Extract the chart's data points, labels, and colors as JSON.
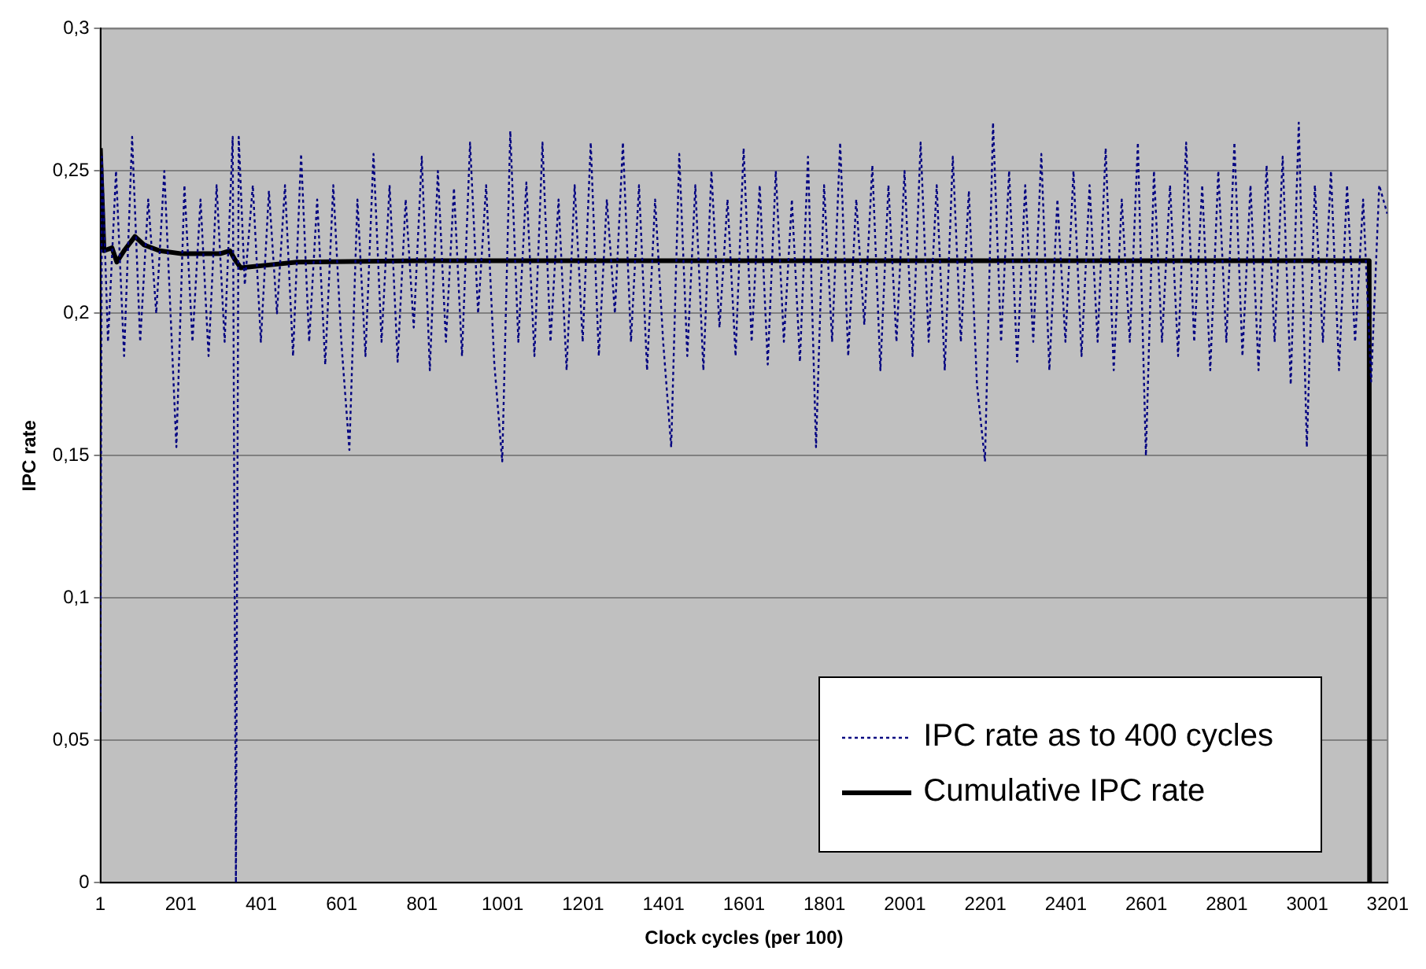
{
  "chart_data": {
    "type": "line",
    "xlabel": "Clock cycles (per 100)",
    "ylabel": "IPC rate",
    "xlim": [
      1,
      3201
    ],
    "xticks": [
      1,
      201,
      401,
      601,
      801,
      1001,
      1201,
      1401,
      1601,
      1801,
      2001,
      2201,
      2401,
      2601,
      2801,
      3001,
      3201
    ],
    "ylim": [
      0,
      0.3
    ],
    "yticks": [
      0,
      {
        "value": 0.05,
        "label": "0,05"
      },
      {
        "value": 0.1,
        "label": "0,1"
      },
      {
        "value": 0.15,
        "label": "0,15"
      },
      {
        "value": 0.2,
        "label": "0,2"
      },
      {
        "value": 0.25,
        "label": "0,25"
      },
      {
        "value": 0.3,
        "label": "0,3"
      }
    ],
    "grid": "y",
    "legend": "bottom right",
    "marker": "none",
    "series": [
      {
        "name": "IPC rate as to 400 cycles",
        "color": "#000080",
        "line_style": "dotted",
        "x": [
          1,
          5,
          20,
          40,
          60,
          80,
          100,
          120,
          140,
          160,
          190,
          210,
          230,
          250,
          270,
          290,
          310,
          330,
          338,
          345,
          360,
          380,
          400,
          420,
          440,
          460,
          480,
          500,
          520,
          540,
          560,
          580,
          600,
          620,
          640,
          660,
          680,
          700,
          720,
          740,
          760,
          780,
          800,
          820,
          840,
          860,
          880,
          900,
          920,
          940,
          960,
          980,
          1000,
          1020,
          1040,
          1060,
          1080,
          1100,
          1120,
          1140,
          1160,
          1180,
          1200,
          1220,
          1240,
          1260,
          1280,
          1300,
          1320,
          1340,
          1360,
          1380,
          1400,
          1420,
          1440,
          1460,
          1480,
          1500,
          1520,
          1540,
          1560,
          1580,
          1600,
          1620,
          1640,
          1660,
          1680,
          1700,
          1720,
          1740,
          1760,
          1780,
          1800,
          1820,
          1840,
          1860,
          1880,
          1900,
          1920,
          1940,
          1960,
          1980,
          2000,
          2020,
          2040,
          2060,
          2080,
          2100,
          2120,
          2140,
          2160,
          2180,
          2200,
          2220,
          2240,
          2260,
          2280,
          2300,
          2320,
          2340,
          2360,
          2380,
          2400,
          2420,
          2440,
          2460,
          2480,
          2500,
          2520,
          2540,
          2560,
          2580,
          2600,
          2620,
          2640,
          2660,
          2680,
          2700,
          2720,
          2740,
          2760,
          2780,
          2800,
          2820,
          2840,
          2860,
          2880,
          2900,
          2920,
          2940,
          2960,
          2980,
          3000,
          3020,
          3040,
          3060,
          3080,
          3100,
          3120,
          3140,
          3160,
          3180,
          3200
        ],
        "values": [
          0.06,
          0.255,
          0.19,
          0.25,
          0.185,
          0.262,
          0.19,
          0.24,
          0.2,
          0.25,
          0.153,
          0.245,
          0.19,
          0.24,
          0.185,
          0.245,
          0.19,
          0.262,
          0,
          0.262,
          0.21,
          0.245,
          0.19,
          0.243,
          0.2,
          0.245,
          0.185,
          0.256,
          0.19,
          0.24,
          0.182,
          0.245,
          0.19,
          0.152,
          0.24,
          0.185,
          0.256,
          0.19,
          0.245,
          0.183,
          0.24,
          0.195,
          0.255,
          0.18,
          0.25,
          0.19,
          0.244,
          0.185,
          0.26,
          0.2,
          0.245,
          0.183,
          0.148,
          0.264,
          0.19,
          0.246,
          0.185,
          0.26,
          0.19,
          0.24,
          0.18,
          0.245,
          0.19,
          0.26,
          0.185,
          0.24,
          0.2,
          0.26,
          0.19,
          0.245,
          0.18,
          0.24,
          0.19,
          0.153,
          0.256,
          0.185,
          0.245,
          0.18,
          0.25,
          0.195,
          0.24,
          0.185,
          0.258,
          0.19,
          0.245,
          0.182,
          0.25,
          0.19,
          0.24,
          0.183,
          0.255,
          0.153,
          0.245,
          0.19,
          0.26,
          0.185,
          0.24,
          0.196,
          0.252,
          0.18,
          0.245,
          0.19,
          0.25,
          0.185,
          0.26,
          0.19,
          0.245,
          0.18,
          0.255,
          0.19,
          0.243,
          0.175,
          0.148,
          0.267,
          0.19,
          0.25,
          0.183,
          0.245,
          0.19,
          0.256,
          0.18,
          0.24,
          0.19,
          0.25,
          0.185,
          0.245,
          0.19,
          0.258,
          0.18,
          0.24,
          0.19,
          0.26,
          0.15,
          0.25,
          0.19,
          0.245,
          0.185,
          0.26,
          0.19,
          0.245,
          0.18,
          0.25,
          0.19,
          0.26,
          0.185,
          0.245,
          0.18,
          0.252,
          0.19,
          0.255,
          0.175,
          0.267,
          0.153,
          0.245,
          0.19,
          0.25,
          0.18,
          0.245,
          0.19,
          0.24,
          0.176,
          0.245,
          0.235
        ]
      },
      {
        "name": "Cumulative IPC rate",
        "color": "#000000",
        "line_style": "solid",
        "x": [
          1,
          10,
          30,
          42,
          60,
          87,
          110,
          148,
          200,
          300,
          323,
          335,
          350,
          420,
          490,
          800,
          1500,
          2500,
          3155,
          3156
        ],
        "values": [
          0.258,
          0.222,
          0.223,
          0.218,
          0.222,
          0.227,
          0.224,
          0.222,
          0.221,
          0.221,
          0.222,
          0.219,
          0.216,
          0.217,
          0.218,
          0.2185,
          0.2185,
          0.2185,
          0.2185,
          0
        ]
      }
    ]
  }
}
